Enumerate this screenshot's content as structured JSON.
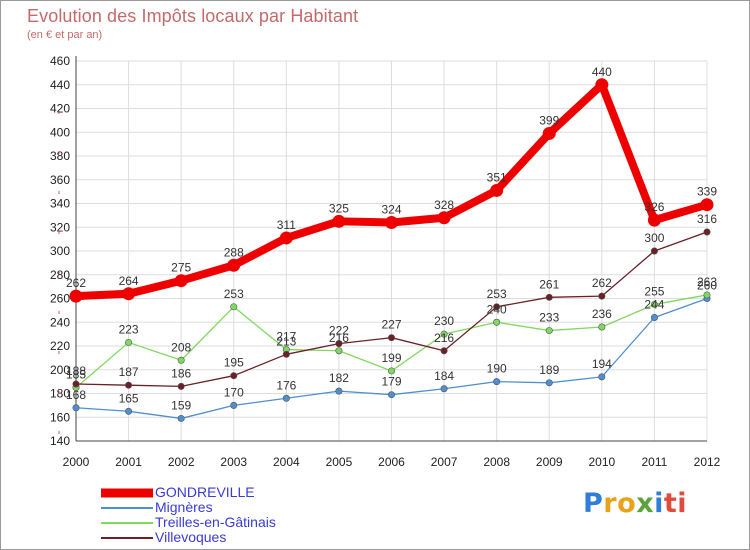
{
  "header": {
    "title": "Evolution des Impôts locaux par Habitant",
    "subtitle": "(en € et par an)"
  },
  "logo": {
    "letters": [
      "P",
      "r",
      "o",
      "x",
      "i",
      "t",
      "i"
    ],
    "colors": [
      "#2f7fd9",
      "#e8a21b",
      "#e8a21b",
      "#5aa53a",
      "#2f7fd9",
      "#e04b3b",
      "#e04b3b"
    ]
  },
  "chart_data": {
    "type": "line",
    "title": "Evolution des Impôts locaux par Habitant",
    "subtitle": "(en € et par an)",
    "xlabel": "",
    "ylabel": "",
    "x": [
      "2000",
      "2001",
      "2002",
      "2003",
      "2004",
      "2005",
      "2006",
      "2007",
      "2008",
      "2009",
      "2010",
      "2011",
      "2012"
    ],
    "ylim": [
      140,
      460
    ],
    "yticks": [
      140,
      160,
      180,
      200,
      220,
      240,
      260,
      280,
      300,
      320,
      340,
      360,
      380,
      400,
      420,
      440,
      460
    ],
    "grid": true,
    "legend_position": "bottom-left",
    "series": [
      {
        "name": "GONDREVILLE",
        "color": "#ee0000",
        "emphasis": true,
        "values": [
          262,
          264,
          275,
          288,
          311,
          325,
          324,
          328,
          351,
          399,
          440,
          326,
          339
        ]
      },
      {
        "name": "Mignères",
        "color": "#4f8fcf",
        "emphasis": false,
        "values": [
          168,
          165,
          159,
          170,
          176,
          182,
          179,
          184,
          190,
          189,
          194,
          244,
          260
        ]
      },
      {
        "name": "Treilles-en-Gâtinais",
        "color": "#80d860",
        "emphasis": false,
        "values": [
          185,
          223,
          208,
          253,
          217,
          216,
          199,
          230,
          240,
          233,
          236,
          255,
          263
        ]
      },
      {
        "name": "Villevoques",
        "color": "#6b1f26",
        "emphasis": false,
        "values": [
          188,
          187,
          186,
          195,
          213,
          222,
          227,
          216,
          253,
          261,
          262,
          300,
          316
        ]
      }
    ]
  }
}
